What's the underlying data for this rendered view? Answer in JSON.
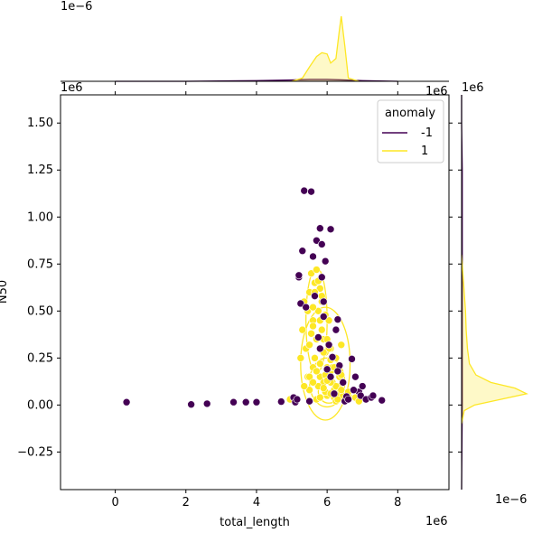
{
  "chart_data": {
    "type": "scatter",
    "xlabel": "total_length",
    "ylabel": "N50",
    "x_offset_label": "1e6",
    "y_offset_label": "1e6",
    "top_marginal_offset_label": "1e−6",
    "right_marginal_offset_label": "1e−6",
    "xlim": [
      -1.55,
      9.45
    ],
    "ylim": [
      -0.45,
      1.65
    ],
    "x_ticks": [
      0,
      2,
      4,
      6,
      8
    ],
    "x_tick_labels": [
      "0",
      "2",
      "4",
      "6",
      "8"
    ],
    "y_ticks": [
      -0.25,
      0,
      0.25,
      0.5,
      0.75,
      1.0,
      1.25,
      1.5
    ],
    "y_tick_labels": [
      "−0.25",
      "0.00",
      "0.25",
      "0.50",
      "0.75",
      "1.00",
      "1.25",
      "1.50"
    ],
    "grid": false,
    "legend": {
      "title": "anomaly",
      "placement": "top-right",
      "entries": [
        {
          "label": "-1",
          "color": "#440154"
        },
        {
          "label": "1",
          "color": "#fde725"
        }
      ]
    },
    "colors": {
      "anomaly_-1": "#440154",
      "anomaly_1": "#fde725"
    },
    "series": [
      {
        "name": "-1",
        "color": "#440154",
        "x": [
          0.32,
          2.15,
          2.6,
          3.35,
          3.7,
          4.0,
          4.7,
          5.05,
          5.1,
          5.2,
          5.3,
          5.2,
          5.15,
          5.35,
          5.6,
          5.55,
          5.7,
          5.8,
          5.85,
          6.1,
          5.95,
          5.65,
          5.9,
          5.85,
          5.75,
          5.9,
          6.05,
          6.25,
          6.3,
          6.15,
          6.35,
          6.0,
          6.5,
          6.55,
          6.7,
          6.8,
          6.9,
          7.0,
          6.95,
          7.1,
          7.25,
          7.3,
          7.55,
          6.6,
          6.45,
          6.2,
          5.25,
          5.4,
          5.8,
          6.1,
          6.3,
          6.75,
          5.5
        ],
        "y": [
          0.015,
          0.003,
          0.007,
          0.015,
          0.015,
          0.015,
          0.018,
          0.04,
          0.015,
          0.68,
          0.82,
          0.69,
          0.03,
          1.14,
          0.79,
          1.135,
          0.875,
          0.94,
          0.855,
          0.935,
          0.765,
          0.58,
          0.55,
          0.68,
          0.36,
          0.47,
          0.32,
          0.4,
          0.455,
          0.255,
          0.21,
          0.19,
          0.02,
          0.045,
          0.245,
          0.15,
          0.07,
          0.1,
          0.05,
          0.03,
          0.04,
          0.05,
          0.025,
          0.03,
          0.12,
          0.06,
          0.54,
          0.52,
          0.3,
          0.15,
          0.18,
          0.08,
          0.02
        ]
      },
      {
        "name": "1",
        "color": "#fde725",
        "x": [
          4.95,
          5.25,
          5.3,
          5.35,
          5.4,
          5.45,
          5.5,
          5.55,
          5.6,
          5.65,
          5.7,
          5.75,
          5.8,
          5.85,
          5.9,
          5.95,
          6.0,
          6.05,
          6.1,
          6.15,
          6.2,
          6.25,
          6.3,
          6.35,
          6.4,
          6.5,
          5.5,
          5.6,
          5.7,
          5.8,
          5.9,
          6.0,
          6.1,
          6.2,
          5.45,
          5.55,
          5.65,
          5.75,
          5.85,
          5.95,
          6.05,
          6.15,
          6.25,
          6.35,
          6.45,
          5.6,
          5.7,
          5.8,
          5.9,
          6.0,
          6.1,
          5.35,
          5.5,
          5.65,
          5.8,
          5.95,
          6.1,
          6.25,
          6.4,
          6.6,
          5.5,
          5.7,
          5.9,
          6.1,
          6.3,
          5.6,
          5.8,
          6.0,
          6.2,
          5.75,
          5.85,
          5.6,
          5.95,
          6.4,
          6.6,
          6.8,
          6.9
        ],
        "y": [
          0.03,
          0.25,
          0.4,
          0.55,
          0.3,
          0.15,
          0.6,
          0.7,
          0.45,
          0.65,
          0.72,
          0.5,
          0.62,
          0.4,
          0.35,
          0.28,
          0.2,
          0.45,
          0.3,
          0.12,
          0.08,
          0.25,
          0.06,
          0.1,
          0.32,
          0.04,
          0.08,
          0.2,
          0.35,
          0.15,
          0.12,
          0.05,
          0.18,
          0.04,
          0.5,
          0.38,
          0.25,
          0.1,
          0.55,
          0.07,
          0.3,
          0.2,
          0.1,
          0.15,
          0.05,
          0.42,
          0.03,
          0.22,
          0.28,
          0.35,
          0.06,
          0.1,
          0.15,
          0.6,
          0.45,
          0.16,
          0.12,
          0.02,
          0.08,
          0.05,
          0.32,
          0.18,
          0.09,
          0.24,
          0.03,
          0.52,
          0.04,
          0.13,
          0.2,
          0.66,
          0.58,
          0.12,
          0.48,
          0.16,
          0.07,
          0.04,
          0.02
        ]
      }
    ],
    "marginal_x": {
      "position": "top",
      "series": [
        {
          "name": "-1",
          "color": "#440154",
          "x": [
            0,
            2,
            4,
            5,
            5.5,
            6,
            6.5,
            7,
            8
          ],
          "density": [
            0.0,
            0.0,
            0.01,
            0.02,
            0.03,
            0.03,
            0.02,
            0.01,
            0.0
          ]
        },
        {
          "name": "1",
          "color": "#fde725",
          "x": [
            5.0,
            5.3,
            5.5,
            5.7,
            5.85,
            6.0,
            6.1,
            6.25,
            6.35,
            6.4,
            6.5,
            6.6,
            6.9
          ],
          "density": [
            0.0,
            0.05,
            0.22,
            0.38,
            0.44,
            0.42,
            0.28,
            0.35,
            0.8,
            1.0,
            0.55,
            0.05,
            0.0
          ]
        }
      ]
    },
    "marginal_y": {
      "position": "right",
      "series": [
        {
          "name": "-1",
          "color": "#440154",
          "y": [
            -0.45,
            0.0,
            0.25,
            0.5,
            0.75,
            1.0,
            1.25,
            1.5,
            1.65
          ],
          "density": [
            0.0,
            0.01,
            0.01,
            0.01,
            0.01,
            0.01,
            0.01,
            0.0,
            0.0
          ]
        },
        {
          "name": "1",
          "color": "#fde725",
          "y": [
            -0.1,
            -0.03,
            0.0,
            0.03,
            0.06,
            0.09,
            0.12,
            0.16,
            0.22,
            0.3,
            0.4,
            0.5,
            0.6,
            0.7,
            0.8
          ],
          "density": [
            0.0,
            0.04,
            0.2,
            0.6,
            1.0,
            0.82,
            0.45,
            0.22,
            0.12,
            0.09,
            0.07,
            0.06,
            0.04,
            0.02,
            0.0
          ]
        }
      ]
    },
    "kde_contours": [
      {
        "color": "#fde725",
        "cx": 5.95,
        "cy": 0.22,
        "rx": 0.7,
        "ry": 0.3
      },
      {
        "color": "#fde725",
        "cx": 6.0,
        "cy": 0.12,
        "rx": 0.5,
        "ry": 0.13
      },
      {
        "color": "#fde725",
        "cx": 5.7,
        "cy": 0.45,
        "rx": 0.3,
        "ry": 0.28
      },
      {
        "color": "#fde725",
        "cx": 6.05,
        "cy": 0.07,
        "rx": 0.3,
        "ry": 0.06
      }
    ]
  }
}
